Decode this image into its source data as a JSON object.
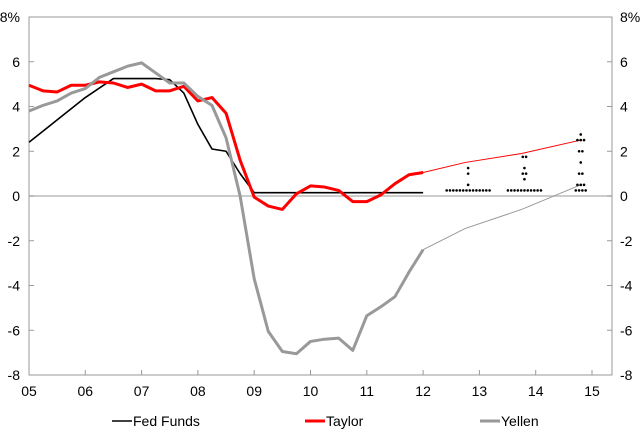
{
  "chart_data": {
    "type": "line",
    "title": "",
    "xlabel": "",
    "ylabel": "",
    "xlim": [
      2005,
      2015.3
    ],
    "ylim": [
      -8,
      8
    ],
    "y_ticks": [
      "8%",
      "6",
      "4",
      "2",
      "0",
      "-2",
      "-4",
      "-6",
      "-8"
    ],
    "y_tick_values": [
      8,
      6,
      4,
      2,
      0,
      -2,
      -4,
      -6,
      -8
    ],
    "x_ticks": [
      "05",
      "06",
      "07",
      "08",
      "09",
      "10",
      "11",
      "12",
      "13",
      "14",
      "15"
    ],
    "x_tick_values": [
      2005,
      2006,
      2007,
      2008,
      2009,
      2010,
      2011,
      2012,
      2013,
      2014,
      2015
    ],
    "legend_position": "bottom",
    "series": [
      {
        "name": "Fed Funds",
        "color": "#000000",
        "x": [
          2005,
          2005.5,
          2006,
          2006.5,
          2007.25,
          2007.5,
          2007.75,
          2008,
          2008.25,
          2008.5,
          2008.75,
          2009,
          2012
        ],
        "y": [
          2.4,
          3.4,
          4.4,
          5.25,
          5.25,
          5.2,
          4.6,
          3.2,
          2.1,
          2.0,
          1.0,
          0.15,
          0.15
        ]
      },
      {
        "name": "Taylor",
        "color": "#ff0000",
        "x": [
          2005,
          2005.25,
          2005.5,
          2005.75,
          2006,
          2006.25,
          2006.5,
          2006.75,
          2007,
          2007.25,
          2007.5,
          2007.75,
          2008,
          2008.25,
          2008.5,
          2008.75,
          2009,
          2009.25,
          2009.5,
          2009.75,
          2010,
          2010.25,
          2010.5,
          2010.75,
          2011,
          2011.25,
          2011.5,
          2011.75,
          2012
        ],
        "y": [
          4.95,
          4.7,
          4.65,
          4.95,
          4.95,
          5.1,
          5.05,
          4.85,
          5.0,
          4.7,
          4.7,
          4.9,
          4.25,
          4.4,
          3.7,
          1.6,
          -0.05,
          -0.45,
          -0.6,
          0.1,
          0.45,
          0.4,
          0.25,
          -0.25,
          -0.25,
          0.05,
          0.55,
          0.95,
          1.05
        ],
        "projection": {
          "x": [
            2012,
            2012.75,
            2013.75,
            2014.8
          ],
          "y": [
            1.05,
            1.5,
            1.9,
            2.5
          ]
        }
      },
      {
        "name": "Yellen",
        "color": "#999999",
        "x": [
          2005,
          2005.25,
          2005.5,
          2005.75,
          2006,
          2006.25,
          2006.5,
          2006.75,
          2007,
          2007.25,
          2007.5,
          2007.75,
          2008,
          2008.25,
          2008.5,
          2008.75,
          2009,
          2009.25,
          2009.5,
          2009.75,
          2010,
          2010.25,
          2010.5,
          2010.75,
          2011,
          2011.25,
          2011.5,
          2011.75,
          2012
        ],
        "y": [
          3.8,
          4.05,
          4.25,
          4.6,
          4.8,
          5.3,
          5.55,
          5.8,
          5.95,
          5.5,
          5.05,
          5.05,
          4.45,
          4.05,
          2.6,
          0.0,
          -3.7,
          -6.05,
          -6.95,
          -7.05,
          -6.5,
          -6.4,
          -6.35,
          -6.9,
          -5.35,
          -4.95,
          -4.5,
          -3.4,
          -2.4
        ],
        "projection": {
          "x": [
            2012,
            2012.75,
            2013.75,
            2014.8
          ],
          "y": [
            -2.4,
            -1.45,
            -0.6,
            0.5
          ]
        }
      }
    ],
    "dot_plot": [
      {
        "x": 2012.8,
        "values": [
          [
            0.25,
            14
          ],
          [
            0.5,
            1
          ],
          [
            1.0,
            1
          ],
          [
            1.25,
            1
          ]
        ]
      },
      {
        "x": 2013.8,
        "values": [
          [
            0.25,
            11
          ],
          [
            0.75,
            1
          ],
          [
            1.0,
            2
          ],
          [
            1.25,
            1
          ],
          [
            1.75,
            2
          ]
        ]
      },
      {
        "x": 2014.8,
        "values": [
          [
            0.25,
            4
          ],
          [
            0.5,
            3
          ],
          [
            1.0,
            2
          ],
          [
            1.5,
            1
          ],
          [
            2.0,
            2
          ],
          [
            2.5,
            3
          ],
          [
            2.75,
            1
          ]
        ]
      }
    ]
  }
}
